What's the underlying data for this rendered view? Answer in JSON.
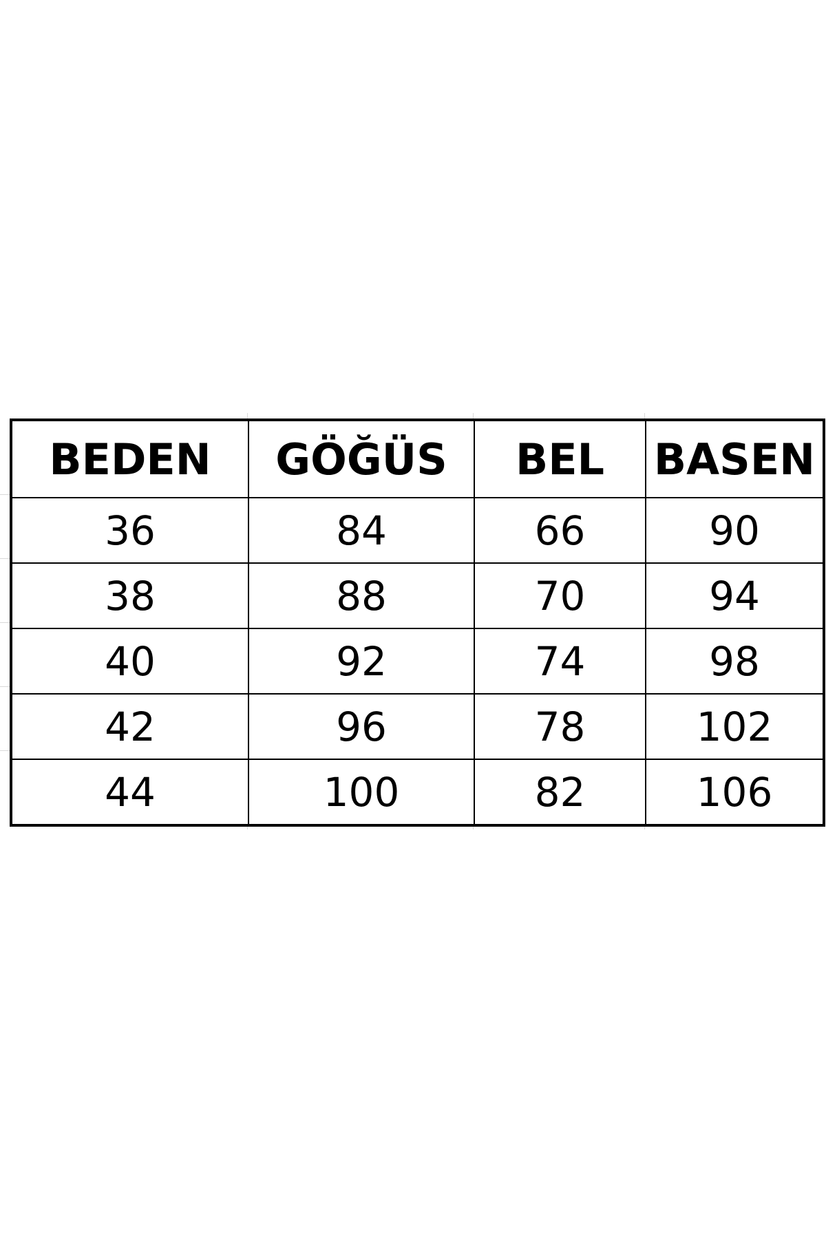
{
  "table": {
    "headers": [
      "BEDEN",
      "GÖĞÜS",
      "BEL",
      "BASEN"
    ],
    "rows": [
      [
        "36",
        "84",
        "66",
        "90"
      ],
      [
        "38",
        "88",
        "70",
        "94"
      ],
      [
        "40",
        "92",
        "74",
        "98"
      ],
      [
        "42",
        "96",
        "78",
        "102"
      ],
      [
        "44",
        "100",
        "82",
        "106"
      ]
    ]
  }
}
